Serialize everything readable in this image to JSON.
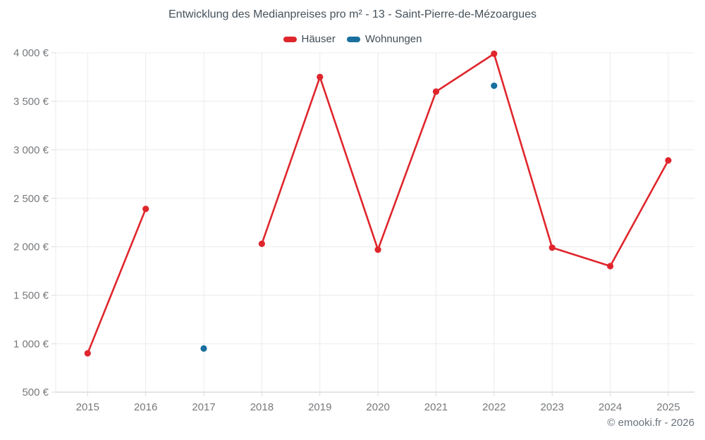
{
  "title": "Entwicklung des Medianpreises pro m² - 13 - Saint-Pierre-de-Mézoargues",
  "footer": {
    "text": "© emooki.fr - 2026"
  },
  "legend": {
    "items": [
      {
        "label": "Häuser",
        "color": "#df262c"
      },
      {
        "label": "Wohnungen",
        "color": "#1a6f9e"
      }
    ]
  },
  "chart_data": {
    "type": "line",
    "title": "Entwicklung des Medianpreises pro m² - 13 - Saint-Pierre-de-Mézoargues",
    "x": [
      2015,
      2016,
      2017,
      2018,
      2019,
      2020,
      2021,
      2022,
      2023,
      2024,
      2025
    ],
    "series": [
      {
        "name": "Häuser",
        "color": "#df262c",
        "marker": "circle",
        "values": [
          900,
          2390,
          null,
          2030,
          3750,
          1970,
          3600,
          3990,
          1990,
          1800,
          2890
        ]
      },
      {
        "name": "Wohnungen",
        "color": "#1a6f9e",
        "marker": "circle",
        "values": [
          null,
          null,
          950,
          null,
          null,
          null,
          null,
          3660,
          null,
          null,
          null
        ]
      }
    ],
    "ylim": [
      500,
      4000
    ],
    "ytick_step": 500,
    "y_suffix": "€",
    "grid": true,
    "legend_position": "top",
    "axis_text_color": "#76797c",
    "grid_color": "#ebebeb",
    "tick_color": "#dcdcdc",
    "axis_line_color": "#c9c9c9"
  }
}
